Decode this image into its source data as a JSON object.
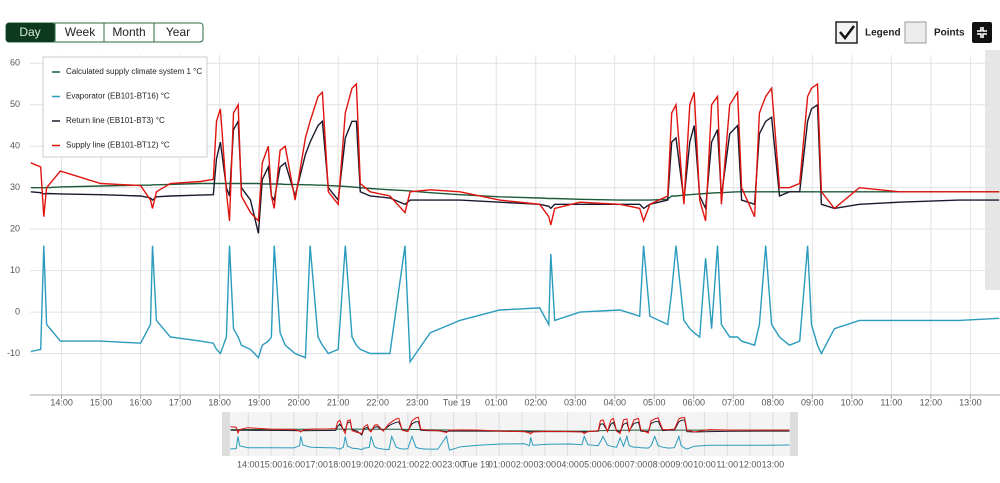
{
  "ui": {
    "range_buttons": [
      "Day",
      "Week",
      "Month",
      "Year"
    ],
    "legend_toggle": "Legend",
    "points_toggle": "Points"
  },
  "chart_data": {
    "type": "line",
    "legend": "upper left",
    "grid": true,
    "x": [
      13.22,
      13.47,
      13.55,
      13.62,
      13.97,
      14.99,
      16.0,
      16.25,
      16.3,
      16.4,
      16.75,
      17.51,
      17.84,
      17.92,
      18.02,
      18.17,
      18.25,
      18.35,
      18.47,
      18.55,
      18.78,
      18.98,
      19.08,
      19.23,
      19.31,
      19.38,
      19.53,
      19.66,
      19.91,
      20.17,
      20.29,
      20.49,
      20.6,
      20.75,
      21.0,
      21.18,
      21.35,
      21.46,
      21.56,
      21.81,
      22.31,
      22.69,
      22.82,
      23.33,
      24.08,
      25.09,
      26.1,
      26.33,
      26.38,
      26.48,
      27.12,
      28.13,
      28.63,
      28.73,
      28.89,
      29.34,
      29.44,
      29.55,
      29.75,
      29.9,
      30.01,
      30.15,
      30.3,
      30.45,
      30.6,
      30.7,
      30.91,
      31.11,
      31.21,
      31.54,
      31.66,
      31.82,
      31.97,
      32.17,
      32.42,
      32.68,
      32.88,
      32.98,
      33.13,
      33.23,
      33.56,
      34.19,
      35.2,
      36.72,
      37.73
    ],
    "xlim": [
      13.2,
      37.75
    ],
    "xticks": [
      {
        "value": 14,
        "label": "14:00"
      },
      {
        "value": 15,
        "label": "15:00"
      },
      {
        "value": 16,
        "label": "16:00"
      },
      {
        "value": 17,
        "label": "17:00"
      },
      {
        "value": 18,
        "label": "18:00"
      },
      {
        "value": 19,
        "label": "19:00"
      },
      {
        "value": 20,
        "label": "20:00"
      },
      {
        "value": 21,
        "label": "21:00"
      },
      {
        "value": 22,
        "label": "22:00"
      },
      {
        "value": 23,
        "label": "23:00"
      },
      {
        "value": 24,
        "label": "Tue 19"
      },
      {
        "value": 25,
        "label": "01:00"
      },
      {
        "value": 26,
        "label": "02:00"
      },
      {
        "value": 27,
        "label": "03:00"
      },
      {
        "value": 28,
        "label": "04:00"
      },
      {
        "value": 29,
        "label": "05:00"
      },
      {
        "value": 30,
        "label": "06:00"
      },
      {
        "value": 31,
        "label": "07:00"
      },
      {
        "value": 32,
        "label": "08:00"
      },
      {
        "value": 33,
        "label": "09:00"
      },
      {
        "value": 34,
        "label": "10:00"
      },
      {
        "value": 35,
        "label": "11:00"
      },
      {
        "value": 36,
        "label": "12:00"
      },
      {
        "value": 37,
        "label": "13:00"
      }
    ],
    "ylim": [
      -20,
      62
    ],
    "yticks": [
      -10,
      0,
      10,
      20,
      30,
      40,
      50,
      60
    ],
    "series": [
      {
        "name": "Calculated supply climate system 1 °C",
        "color": "#1e5b3a",
        "values": [
          30,
          30,
          30,
          30,
          30.2,
          30.4,
          30.6,
          30.6,
          30.7,
          30.7,
          30.8,
          31,
          31,
          31,
          31,
          31,
          31,
          31,
          31,
          31,
          31,
          31,
          30.9,
          30.9,
          30.9,
          30.9,
          30.9,
          30.8,
          30.8,
          30.7,
          30.7,
          30.6,
          30.6,
          30.5,
          30.4,
          30.3,
          30.2,
          30.1,
          30,
          29.8,
          29.5,
          29.3,
          29.2,
          28.8,
          28.3,
          27.8,
          27.5,
          27.4,
          27.4,
          27.4,
          27.2,
          27,
          27,
          27,
          27,
          27.2,
          28,
          28,
          28.2,
          28.3,
          28.4,
          28.5,
          28.6,
          28.7,
          28.8,
          28.8,
          28.9,
          29,
          29,
          29,
          29,
          29,
          29,
          29,
          29,
          29,
          29,
          29,
          29,
          29,
          29,
          29,
          29,
          29,
          29
        ]
      },
      {
        "name": "Evaporator (EB101-BT16) °C",
        "color": "#2a9bbd",
        "values": [
          -9.5,
          -9,
          16,
          -3,
          -7,
          -7,
          -7.5,
          -3,
          16,
          -2,
          -6,
          -7,
          -7.5,
          -9,
          -10,
          -6,
          16,
          -4,
          -6,
          -8,
          -9,
          -11,
          -8,
          -7,
          -6,
          16,
          -5,
          -8,
          -10,
          -11,
          16,
          -6,
          -8,
          -10,
          -9,
          16,
          -6,
          -8,
          -9,
          -10,
          -10,
          16,
          -12,
          -5,
          -2,
          0.5,
          1,
          -3,
          14,
          -2,
          0,
          0.5,
          -1,
          16,
          -1,
          -3,
          5,
          16,
          -2,
          -4,
          -5,
          -6,
          13,
          -4,
          16,
          -3,
          -6,
          -6,
          -7,
          -8,
          -3,
          16,
          -3,
          -6,
          -8,
          -7,
          16,
          -3,
          -8,
          -10,
          -4,
          -2,
          -2,
          -2,
          -1.5
        ]
      },
      {
        "name": "Return line (EB101-BT3) °C",
        "color": "#1a1a2e",
        "values": [
          29,
          28.8,
          28.5,
          28.6,
          28.5,
          28.3,
          28,
          27.5,
          27,
          27.8,
          28,
          28.2,
          28.3,
          37,
          41,
          30,
          28,
          44,
          46,
          30,
          27,
          19,
          32,
          35,
          28,
          27,
          35,
          36,
          28,
          38,
          41,
          45,
          46,
          30,
          27,
          42,
          46,
          46,
          29,
          28,
          27.5,
          26,
          27,
          27,
          27,
          26.5,
          26,
          25.5,
          25,
          26,
          26,
          26,
          26,
          25,
          26,
          27,
          41,
          42,
          27,
          41,
          45,
          28,
          25,
          41,
          44,
          28,
          43,
          45,
          27,
          26,
          43,
          46,
          47,
          28,
          29,
          29,
          46,
          49,
          50,
          26,
          25,
          26,
          26.5,
          27,
          27
        ]
      },
      {
        "name": "Supply line (EB101-BT12) °C",
        "color": "#e0140f",
        "values": [
          36,
          35,
          23,
          30,
          34,
          31,
          30.5,
          27,
          25,
          29,
          31,
          31.5,
          32,
          46,
          49,
          29,
          22,
          48,
          50,
          28,
          24,
          22,
          36,
          40,
          28,
          25,
          39,
          40,
          27,
          42,
          46,
          52,
          53,
          29,
          26,
          48,
          54,
          55,
          31,
          29,
          28,
          24,
          29,
          29.5,
          29,
          27,
          26,
          23,
          21,
          25,
          26.5,
          26,
          25,
          22,
          26,
          28,
          48,
          50,
          26,
          50,
          53,
          27,
          22,
          50,
          52,
          26,
          50,
          53,
          30,
          23,
          48,
          52,
          54,
          30,
          30,
          31,
          52,
          54,
          55,
          29,
          25,
          30,
          29,
          29,
          29
        ]
      }
    ]
  }
}
